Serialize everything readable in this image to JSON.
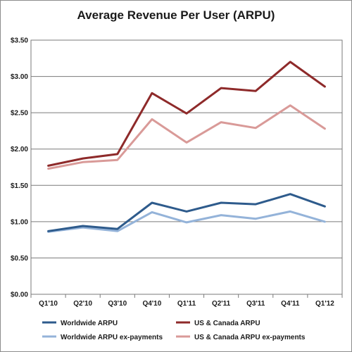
{
  "chart_data": {
    "type": "line",
    "title": "Average Revenue Per User (ARPU)",
    "xlabel": "",
    "ylabel": "",
    "categories": [
      "Q1'10",
      "Q2'10",
      "Q3'10",
      "Q4'10",
      "Q1'11",
      "Q2'11",
      "Q3'11",
      "Q4'11",
      "Q1'12"
    ],
    "ylim": [
      0,
      3.5
    ],
    "yticks": [
      0,
      0.5,
      1.0,
      1.5,
      2.0,
      2.5,
      3.0,
      3.5
    ],
    "ytick_labels": [
      "$0.00",
      "$0.50",
      "$1.00",
      "$1.50",
      "$2.00",
      "$2.50",
      "$3.00",
      "$3.50"
    ],
    "grid": true,
    "legend_position": "bottom",
    "series": [
      {
        "name": "Worldwide ARPU",
        "color": "#2e5b8c",
        "values": [
          0.87,
          0.94,
          0.9,
          1.26,
          1.14,
          1.26,
          1.24,
          1.38,
          1.21
        ]
      },
      {
        "name": "US & Canada ARPU",
        "color": "#8e2a2a",
        "values": [
          1.77,
          1.87,
          1.93,
          2.77,
          2.49,
          2.84,
          2.8,
          3.2,
          2.86
        ]
      },
      {
        "name": "Worldwide ARPU ex-payments",
        "color": "#94b3d9",
        "values": [
          0.86,
          0.92,
          0.87,
          1.13,
          0.99,
          1.09,
          1.04,
          1.14,
          1.0
        ]
      },
      {
        "name": "US & Canada ARPU ex-payments",
        "color": "#d99a98",
        "values": [
          1.73,
          1.82,
          1.85,
          2.41,
          2.09,
          2.37,
          2.29,
          2.6,
          2.28
        ]
      }
    ]
  }
}
